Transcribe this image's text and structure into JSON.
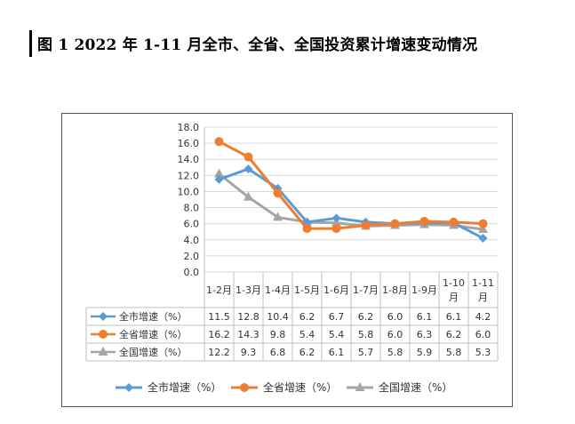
{
  "page": {
    "title": "图 1   2022 年 1-11 月全市、全省、全国投资累计增速变动情况"
  },
  "chart_data": {
    "type": "line",
    "title": "",
    "xlabel": "",
    "ylabel": "",
    "ylim": [
      0,
      18
    ],
    "y_ticks": [
      "0.0",
      "2.0",
      "4.0",
      "6.0",
      "8.0",
      "10.0",
      "12.0",
      "14.0",
      "16.0",
      "18.0"
    ],
    "categories": [
      "1-2月",
      "1-3月",
      "1-4月",
      "1-5月",
      "1-6月",
      "1-7月",
      "1-8月",
      "1-9月",
      "1-10月",
      "1-11月"
    ],
    "grid": true,
    "legend_position": "bottom",
    "series": [
      {
        "name": "全市增速（%）",
        "color": "#5B9BD5",
        "marker": "diamond",
        "values": [
          11.5,
          12.8,
          10.4,
          6.2,
          6.7,
          6.2,
          6.0,
          6.1,
          6.1,
          4.2
        ],
        "labels": [
          "11.5",
          "12.8",
          "10.4",
          "6.2",
          "6.7",
          "6.2",
          "6.0",
          "6.1",
          "6.1",
          "4.2"
        ]
      },
      {
        "name": "全省增速（%）",
        "color": "#ED7D31",
        "marker": "circle",
        "values": [
          16.2,
          14.3,
          9.8,
          5.4,
          5.4,
          5.8,
          6.0,
          6.3,
          6.2,
          6.0
        ],
        "labels": [
          "16.2",
          "14.3",
          "9.8",
          "5.4",
          "5.4",
          "5.8",
          "6.0",
          "6.3",
          "6.2",
          "6.0"
        ]
      },
      {
        "name": "全国增速（%）",
        "color": "#A5A5A5",
        "marker": "triangle",
        "values": [
          12.2,
          9.3,
          6.8,
          6.2,
          6.1,
          5.7,
          5.8,
          5.9,
          5.8,
          5.3
        ],
        "labels": [
          "12.2",
          "9.3",
          "6.8",
          "6.2",
          "6.1",
          "5.7",
          "5.8",
          "5.9",
          "5.8",
          "5.3"
        ]
      }
    ]
  }
}
